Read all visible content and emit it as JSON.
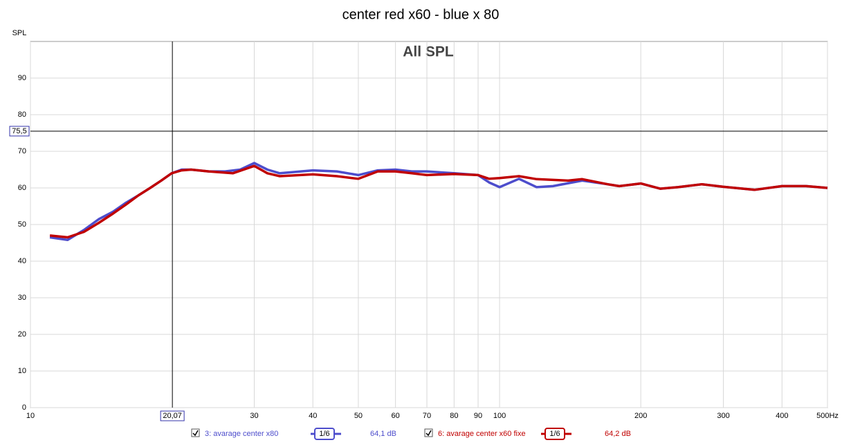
{
  "chart_data": {
    "type": "line",
    "title": "center red x60 - blue x 80",
    "annotation": "All SPL",
    "y_label": "SPL",
    "xlim": [
      10,
      500
    ],
    "ylim": [
      0,
      100
    ],
    "log_x": true,
    "grid": true,
    "xticks": [
      10,
      30,
      40,
      50,
      60,
      70,
      80,
      90,
      100,
      200,
      300,
      400,
      {
        "value": 500,
        "label": "500Hz"
      }
    ],
    "yticks": [
      0,
      10,
      20,
      30,
      40,
      50,
      60,
      70,
      80,
      90
    ],
    "cursor": {
      "x": {
        "value": 20.07,
        "label": "20,07"
      },
      "y": {
        "value": 75.5,
        "label": "75,5"
      }
    },
    "series": [
      {
        "name": "3: avarage center x80",
        "color": "#4d4dcc",
        "smoothing": "1/6",
        "level": "64,1 dB",
        "x": [
          11,
          12,
          13,
          14,
          15,
          16,
          17,
          18,
          19,
          20,
          21,
          22,
          24,
          26,
          28,
          30,
          32,
          34,
          40,
          45,
          50,
          55,
          60,
          65,
          70,
          80,
          90,
          95,
          100,
          110,
          120,
          130,
          150,
          170,
          180,
          200,
          220,
          240,
          270,
          300,
          350,
          400,
          450,
          500
        ],
        "values": [
          46.5,
          45.8,
          48.5,
          51.5,
          53.5,
          56,
          58,
          60,
          62,
          64,
          65,
          65,
          64.5,
          64.5,
          65,
          66.8,
          65,
          64,
          64.8,
          64.5,
          63.5,
          64.8,
          65,
          64.5,
          64.5,
          64,
          63.5,
          61.5,
          60.2,
          62.5,
          60.2,
          60.5,
          62,
          61,
          60.5,
          61.2,
          59.8,
          60.2,
          61,
          60.3,
          59.5,
          60.5,
          60.5,
          60
        ]
      },
      {
        "name": "6: avarage center x60 fixe",
        "color": "#c00000",
        "smoothing": "1/6",
        "level": "64,2 dB",
        "x": [
          11,
          12,
          13,
          14,
          15,
          16,
          17,
          18,
          19,
          20,
          21,
          22,
          24,
          27,
          30,
          32,
          34,
          40,
          45,
          50,
          55,
          60,
          65,
          70,
          80,
          90,
          95,
          100,
          110,
          120,
          140,
          150,
          170,
          180,
          200,
          220,
          240,
          270,
          300,
          350,
          400,
          450,
          500
        ],
        "values": [
          47,
          46.5,
          48,
          50.5,
          53,
          55.5,
          58,
          60,
          62,
          64,
          64.8,
          65,
          64.5,
          64,
          66,
          64,
          63.2,
          63.7,
          63.2,
          62.5,
          64.5,
          64.5,
          64,
          63.5,
          63.8,
          63.5,
          62.5,
          62.7,
          63.2,
          62.4,
          62,
          62.4,
          61,
          60.5,
          61.2,
          59.8,
          60.2,
          61,
          60.3,
          59.5,
          60.5,
          60.5,
          60
        ]
      }
    ]
  }
}
